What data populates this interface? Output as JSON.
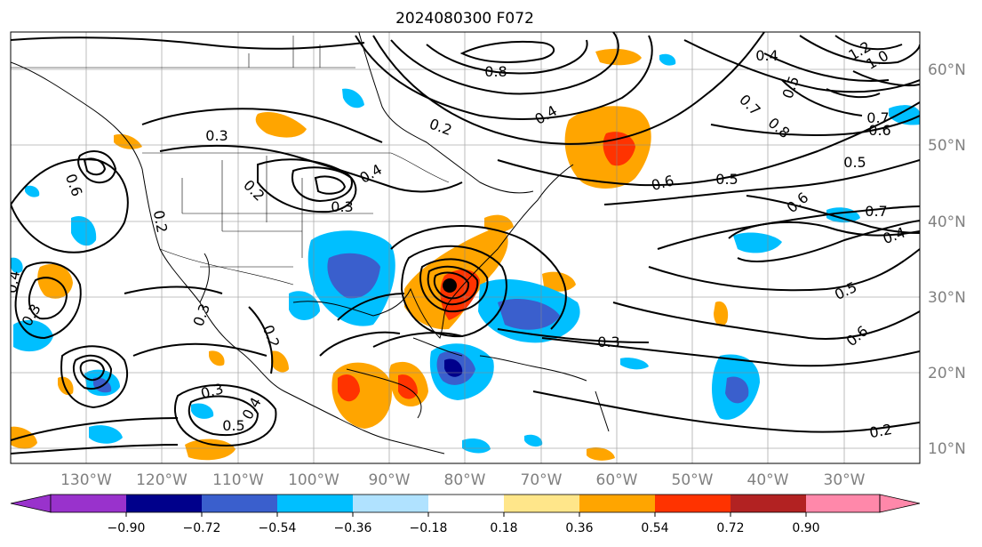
{
  "title": "2024080300 F072",
  "map": {
    "projection": "PlateCarree",
    "extent_lon": [
      -137,
      -17
    ],
    "extent_lat": [
      7,
      64
    ],
    "lon_labels": [
      "130°W",
      "120°W",
      "110°W",
      "100°W",
      "90°W",
      "80°W",
      "70°W",
      "60°W",
      "50°W",
      "40°W",
      "30°W"
    ],
    "lat_labels": [
      "60°N",
      "50°N",
      "40°N",
      "30°N",
      "20°N",
      "10°N"
    ],
    "gridlines": true,
    "contour_color": "#000000",
    "contour_labels": [
      "0.3",
      "0.2",
      "0.8",
      "0.4",
      "0.2",
      "0.6",
      "0.5",
      "0.3",
      "0.7",
      "0.4",
      "0.5",
      "0.6",
      "0.3",
      "0.2",
      "0.3",
      "0.5",
      "0.4",
      "0.2",
      "0.3",
      "0.7",
      "0.6",
      "0.5",
      "0.6",
      "0.4",
      "0.5",
      "0.8",
      "0.4",
      "1.2",
      "1.0",
      "0.7",
      "0.6",
      "0.4",
      "0.2",
      "0.3"
    ],
    "cyclone_marker": "filled-circle"
  },
  "colorbar": {
    "tick_labels": [
      "−0.90",
      "−0.72",
      "−0.54",
      "−0.36",
      "−0.18",
      "0.18",
      "0.36",
      "0.54",
      "0.72",
      "0.90"
    ],
    "colors": [
      "#9932cc",
      "#00008b",
      "#3a5fcd",
      "#00bfff",
      "#b0e2ff",
      "#ffffff",
      "#ffe68a",
      "#ffa500",
      "#ff3300",
      "#b22222",
      "#ff88aa"
    ],
    "extend": "both"
  }
}
